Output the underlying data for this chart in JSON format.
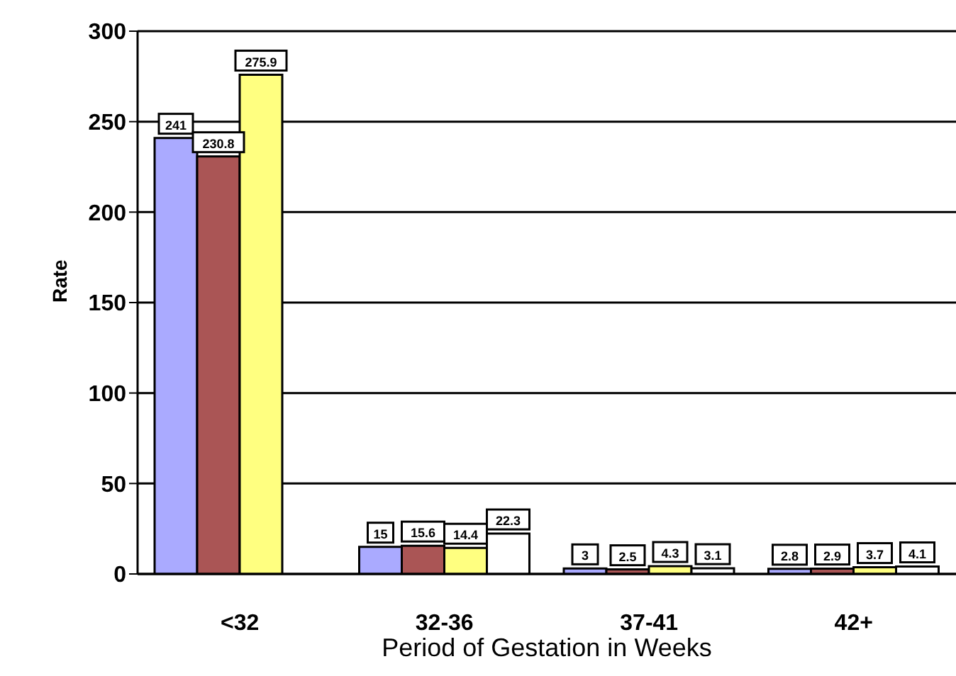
{
  "chart_data": {
    "type": "bar",
    "xlabel": "Period of Gestation in Weeks",
    "ylabel": "Rate",
    "categories": [
      "<32",
      "32-36",
      "37-41",
      "42+"
    ],
    "series": [
      {
        "color": "#aaaaff",
        "values": [
          241,
          15,
          3,
          2.8
        ]
      },
      {
        "color": "#aa5555",
        "values": [
          230.8,
          15.6,
          2.5,
          2.9
        ]
      },
      {
        "color": "#ffff80",
        "values": [
          275.9,
          14.4,
          4.3,
          3.7
        ]
      },
      {
        "color": "#ffffff",
        "values": [
          null,
          22.3,
          3.1,
          4.1
        ]
      }
    ],
    "ylim": [
      0,
      300
    ],
    "yticks": [
      0,
      50,
      100,
      150,
      200,
      250,
      300
    ],
    "grid": "y",
    "data_labels": true,
    "legend": false
  }
}
